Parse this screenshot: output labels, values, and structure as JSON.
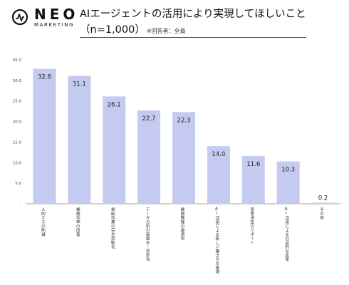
{
  "brand": {
    "name": "NEO",
    "sub": "MARKETING",
    "logo_icon": "pulse-circle-icon"
  },
  "header": {
    "title": "AIエージェントの活用により実現してほしいこと",
    "subtitle": "（n=1,000）",
    "note": "※回答者：全員"
  },
  "chart_data": {
    "type": "bar",
    "categories": [
      "人的ミスの削減",
      "業務効率の改善",
      "単純作業の完全自動化",
      "データ分析の高度化・効率化",
      "業務管理の最適化",
      "AI活用による新しい働き方の実現",
      "意思決定のサポート",
      "AI活用による社会的な変革",
      "その他"
    ],
    "values": [
      32.8,
      31.1,
      26.1,
      22.7,
      22.3,
      14.0,
      11.6,
      10.3,
      0.2
    ],
    "value_labels": [
      "32.8",
      "31.1",
      "26.1",
      "22.7",
      "22.3",
      "14.0",
      "11.6",
      "10.3",
      "0.2"
    ],
    "yticks": [
      "35.0",
      "30.0",
      "25.0",
      "20.0",
      "15.0",
      "10.0",
      "5.0",
      "-"
    ],
    "ylim": [
      0,
      35
    ],
    "bar_color": "#c5cbf0",
    "grid": false,
    "legend": "none"
  }
}
